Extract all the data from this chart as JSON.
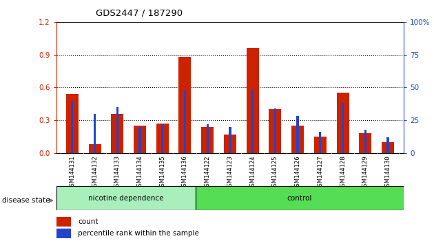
{
  "title": "GDS2447 / 187290",
  "samples": [
    "GSM144131",
    "GSM144132",
    "GSM144133",
    "GSM144134",
    "GSM144135",
    "GSM144136",
    "GSM144122",
    "GSM144123",
    "GSM144124",
    "GSM144125",
    "GSM144126",
    "GSM144127",
    "GSM144128",
    "GSM144129",
    "GSM144130"
  ],
  "count_values": [
    0.54,
    0.08,
    0.36,
    0.25,
    0.27,
    0.88,
    0.24,
    0.17,
    0.96,
    0.4,
    0.25,
    0.15,
    0.55,
    0.18,
    0.1
  ],
  "percentile_values": [
    40,
    30,
    35,
    20,
    22,
    48,
    22,
    20,
    48,
    34,
    28,
    16,
    38,
    18,
    12
  ],
  "nicotine_count": 6,
  "control_count": 9,
  "group1_label": "nicotine dependence",
  "group2_label": "control",
  "disease_state_label": "disease state",
  "legend_count_label": "count",
  "legend_pct_label": "percentile rank within the sample",
  "bar_color_count": "#cc2200",
  "bar_color_pct": "#2244cc",
  "left_axis_color": "#cc2200",
  "right_axis_color": "#2244cc",
  "ylim_left": [
    0,
    1.2
  ],
  "ylim_right": [
    0,
    100
  ],
  "yticks_left": [
    0,
    0.3,
    0.6,
    0.9,
    1.2
  ],
  "yticks_right": [
    0,
    25,
    50,
    75,
    100
  ],
  "group1_color": "#aaeebb",
  "group2_color": "#55dd55",
  "bg_ticks_color": "#d8d8d8"
}
